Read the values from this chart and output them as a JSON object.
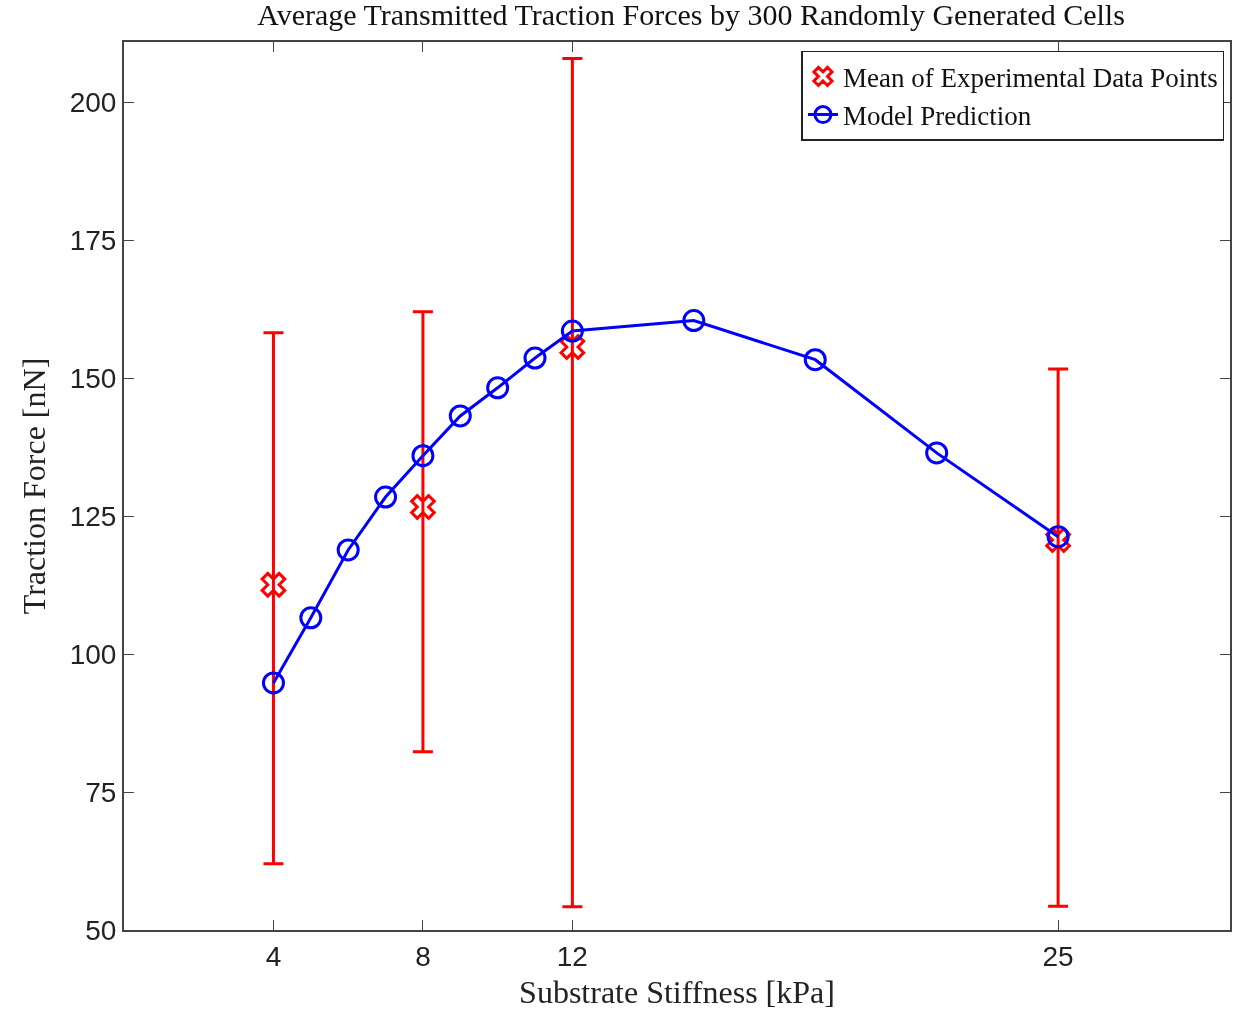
{
  "chart_data": {
    "type": "scatter",
    "title": "Average Transmitted Traction Forces by 300 Randomly Generated Cells",
    "xlabel": "Substrate Stiffness [kPa]",
    "ylabel": "Traction Force [nN]",
    "xlim": [
      0,
      29.6
    ],
    "xticks": [
      4,
      8,
      12,
      25
    ],
    "ylim": [
      50,
      211
    ],
    "yticks": [
      50,
      75,
      100,
      125,
      150,
      175,
      200
    ],
    "legend": "top right",
    "series": [
      {
        "name": "Mean of Experimental Data Points",
        "marker": "cross",
        "color": "#ff0000",
        "x": [
          4,
          8,
          12,
          25
        ],
        "values": [
          112.6,
          126.7,
          155.7,
          120.7
        ],
        "errors": [
          [
            62.0,
            158.3
          ],
          [
            82.3,
            162.1
          ],
          [
            54.2,
            208.0
          ],
          [
            54.3,
            151.7
          ]
        ]
      },
      {
        "name": "Model Prediction",
        "type": "line",
        "marker": "circle",
        "line_style": "solid",
        "color": "#0000ff",
        "x": [
          4,
          5,
          6,
          7,
          8,
          9,
          10,
          11,
          12,
          15.25,
          18.5,
          21.75,
          25
        ],
        "values": [
          94.8,
          106.6,
          118.9,
          128.5,
          136.0,
          143.2,
          148.3,
          153.7,
          158.6,
          160.5,
          153.4,
          136.5,
          121.3
        ]
      }
    ]
  }
}
